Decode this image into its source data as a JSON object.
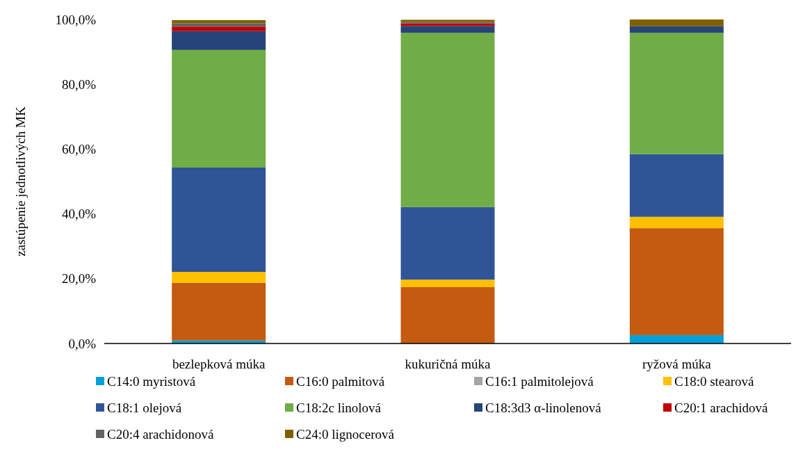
{
  "chart_data": {
    "type": "bar",
    "stacked": true,
    "ylabel": "zastúpenie jednotlivých MK",
    "categories": [
      "bezlepková múka",
      "kukuričná múka",
      "ryžová múka"
    ],
    "ylim": [
      0,
      100
    ],
    "yticks": [
      {
        "value": 0,
        "label": "0,0%"
      },
      {
        "value": 20,
        "label": "20,0%"
      },
      {
        "value": 40,
        "label": "40,0%"
      },
      {
        "value": 60,
        "label": "60,0%"
      },
      {
        "value": 80,
        "label": "80,0%"
      },
      {
        "value": 100,
        "label": "100,0%"
      }
    ],
    "legend": "bottom",
    "grid": false,
    "series": [
      {
        "name": "C14:0 myristová",
        "color": "#00a0d8",
        "values": [
          0.9,
          0,
          2.6
        ]
      },
      {
        "name": "C16:0 palmitová",
        "color": "#c55a11",
        "values": [
          17.8,
          17.4,
          33.0
        ]
      },
      {
        "name": "C16:1 palmitolejová",
        "color": "#a5a5a5",
        "values": [
          0,
          0,
          0
        ]
      },
      {
        "name": "C18:0 stearová",
        "color": "#ffc000",
        "values": [
          3.4,
          2.3,
          3.5
        ]
      },
      {
        "name": "C18:1 olejová",
        "color": "#2f5597",
        "values": [
          32.2,
          22.4,
          19.3
        ]
      },
      {
        "name": "C18:2c linolová",
        "color": "#70ad47",
        "values": [
          36.3,
          53.8,
          37.5
        ]
      },
      {
        "name": "C18:3d3 α-linolenová",
        "color": "#264478",
        "values": [
          5.8,
          2.1,
          2.0
        ]
      },
      {
        "name": "C20:1 arachidová",
        "color": "#c00000",
        "values": [
          1.4,
          0.8,
          0
        ]
      },
      {
        "name": "C20:4 arachidonová",
        "color": "#636363",
        "values": [
          1.0,
          0.4,
          0
        ]
      },
      {
        "name": "C24:0 lignocerová",
        "color": "#7f6000",
        "values": [
          1.0,
          0.7,
          2.1
        ]
      }
    ]
  }
}
